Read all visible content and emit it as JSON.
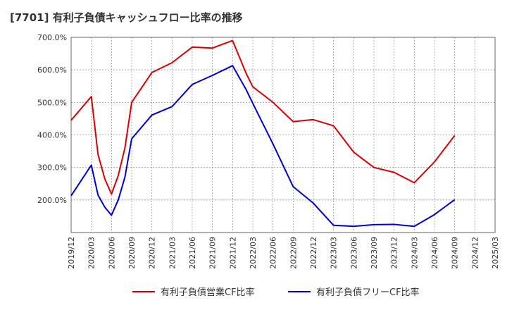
{
  "chart_data": {
    "type": "line",
    "title": "[7701]  有利子負債キャッシュフロー比率の推移",
    "xlabel": "",
    "ylabel": "",
    "ylim": [
      100,
      700
    ],
    "yticks": [
      200,
      300,
      400,
      500,
      600,
      700
    ],
    "ytick_labels": [
      "200.0%",
      "300.0%",
      "400.0%",
      "500.0%",
      "600.0%",
      "700.0%"
    ],
    "x_ticks": [
      "2019/12",
      "2020/03",
      "2020/06",
      "2020/09",
      "2020/12",
      "2021/03",
      "2021/06",
      "2021/09",
      "2021/12",
      "2022/03",
      "2022/06",
      "2022/09",
      "2022/12",
      "2023/03",
      "2023/06",
      "2023/09",
      "2023/12",
      "2024/03",
      "2024/06",
      "2024/09",
      "2024/12",
      "2025/03"
    ],
    "grid": true,
    "legend_position": "bottom",
    "series": [
      {
        "name": "有利子負債営業CF比率",
        "color": "#dd0000",
        "points": [
          [
            "2019/12",
            445
          ],
          [
            "2020/03",
            518
          ],
          [
            "2020/04",
            340
          ],
          [
            "2020/05",
            265
          ],
          [
            "2020/06",
            218
          ],
          [
            "2020/07",
            275
          ],
          [
            "2020/08",
            360
          ],
          [
            "2020/09",
            500
          ],
          [
            "2020/12",
            592
          ],
          [
            "2021/03",
            622
          ],
          [
            "2021/06",
            670
          ],
          [
            "2021/09",
            667
          ],
          [
            "2021/12",
            690
          ],
          [
            "2022/02",
            590
          ],
          [
            "2022/03",
            548
          ],
          [
            "2022/06",
            500
          ],
          [
            "2022/09",
            441
          ],
          [
            "2022/12",
            447
          ],
          [
            "2023/03",
            428
          ],
          [
            "2023/06",
            347
          ],
          [
            "2023/09",
            300
          ],
          [
            "2023/12",
            285
          ],
          [
            "2024/03",
            253
          ],
          [
            "2024/06",
            317
          ],
          [
            "2024/09",
            398
          ]
        ]
      },
      {
        "name": "有利子負債フリーCF比率",
        "color": "#0000cc",
        "points": [
          [
            "2019/12",
            213
          ],
          [
            "2020/03",
            307
          ],
          [
            "2020/04",
            215
          ],
          [
            "2020/05",
            178
          ],
          [
            "2020/06",
            153
          ],
          [
            "2020/07",
            200
          ],
          [
            "2020/08",
            270
          ],
          [
            "2020/09",
            388
          ],
          [
            "2020/12",
            461
          ],
          [
            "2021/03",
            487
          ],
          [
            "2021/06",
            555
          ],
          [
            "2021/09",
            583
          ],
          [
            "2021/12",
            613
          ],
          [
            "2022/02",
            540
          ],
          [
            "2022/03",
            497
          ],
          [
            "2022/06",
            372
          ],
          [
            "2022/09",
            241
          ],
          [
            "2022/12",
            190
          ],
          [
            "2023/03",
            122
          ],
          [
            "2023/06",
            119
          ],
          [
            "2023/09",
            124
          ],
          [
            "2023/12",
            125
          ],
          [
            "2024/03",
            119
          ],
          [
            "2024/06",
            155
          ],
          [
            "2024/09",
            201
          ]
        ]
      }
    ]
  }
}
